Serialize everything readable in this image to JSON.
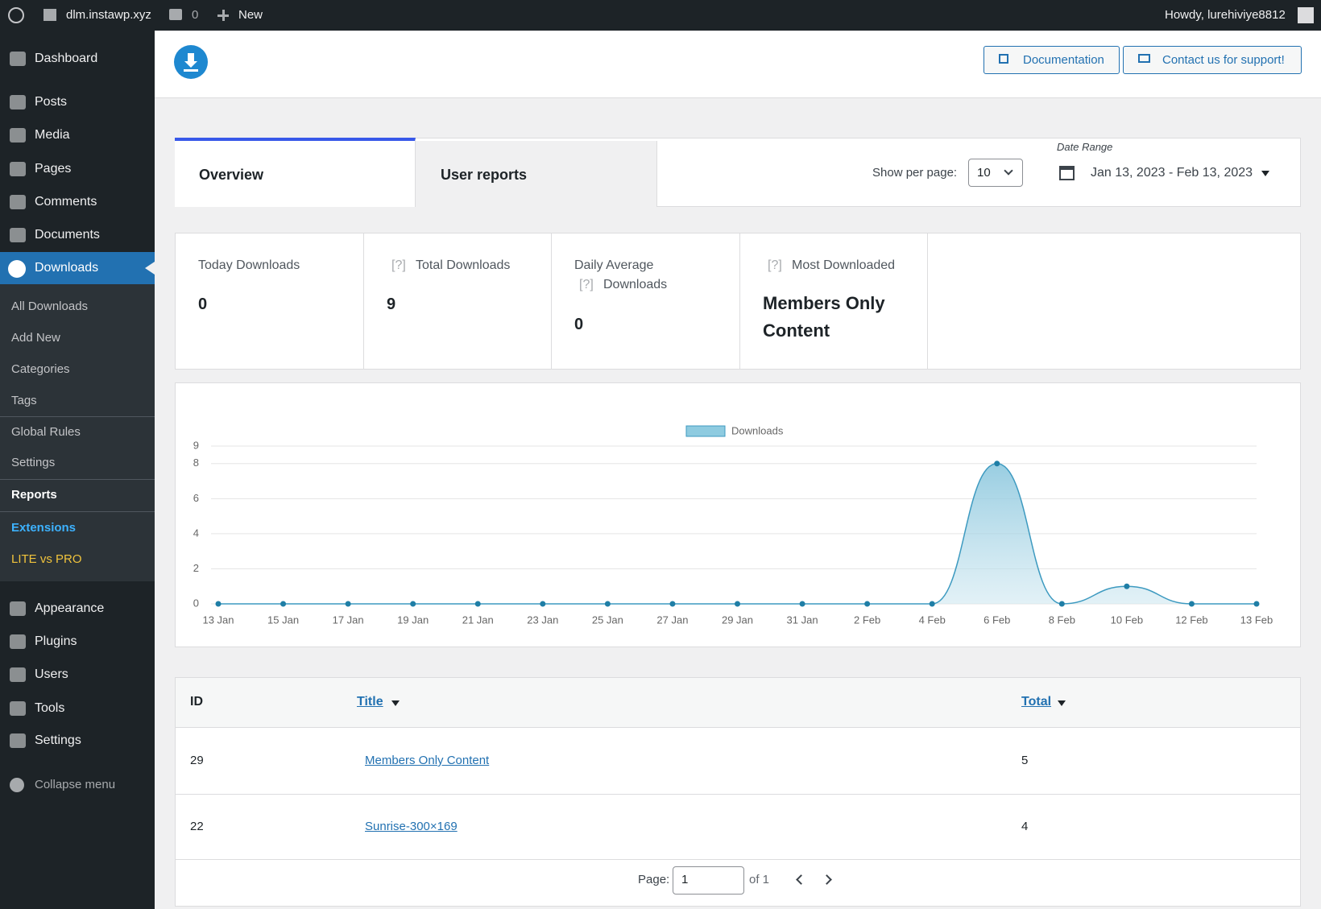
{
  "admin_bar": {
    "site": "dlm.instawp.xyz",
    "comments": "0",
    "new": "New",
    "greeting": "Howdy, lurehiviye8812"
  },
  "sidebar": {
    "dashboard": "Dashboard",
    "menu": [
      "Posts",
      "Media",
      "Pages",
      "Comments",
      "Documents"
    ],
    "active": "Downloads",
    "submenu": [
      "All Downloads",
      "Add New",
      "Categories",
      "Tags"
    ],
    "submenu2": [
      "Global Rules",
      "Settings"
    ],
    "current": "Reports",
    "extensions": "Extensions",
    "lite_vs_pro": "LITE vs PRO",
    "menu_bottom": [
      "Appearance",
      "Plugins",
      "Users",
      "Tools",
      "Settings"
    ],
    "collapse": "Collapse menu"
  },
  "header": {
    "buttons": [
      "Documentation",
      "Contact us for support!"
    ]
  },
  "toolbar": {
    "tabs": [
      "Overview",
      "User reports"
    ],
    "per_page_label": "Show per page:",
    "per_page": "10",
    "date_range_label": "Date Range",
    "date_range": "Jan 13, 2023 - Feb 13, 2023"
  },
  "stats": [
    {
      "label": "Today Downloads",
      "value": 0
    },
    {
      "help": "[?]",
      "label": "Total Downloads",
      "value": 9
    },
    {
      "label": "Daily Average",
      "help": "[?]",
      "label2": "Downloads",
      "value": 0
    },
    {
      "help": "[?]",
      "label": "Most Downloaded",
      "value": "Members Only Content"
    }
  ],
  "chart_data": {
    "type": "area",
    "categories": [
      "13 Jan",
      "15 Jan",
      "17 Jan",
      "19 Jan",
      "21 Jan",
      "23 Jan",
      "25 Jan",
      "27 Jan",
      "29 Jan",
      "31 Jan",
      "2 Feb",
      "4 Feb",
      "6 Feb",
      "8 Feb",
      "10 Feb",
      "12 Feb",
      "13 Feb"
    ],
    "series": [
      {
        "name": "Downloads",
        "color": "#3d9ac0",
        "values": [
          0,
          0,
          0,
          0,
          0,
          0,
          0,
          0,
          0,
          0,
          0,
          0,
          8,
          0,
          1,
          0,
          0
        ]
      }
    ],
    "ylim": [
      0,
      9
    ],
    "yticks": [
      0,
      2,
      4,
      6,
      8,
      9
    ],
    "grid": true,
    "legend": "top"
  },
  "table": {
    "headers": [
      "ID",
      "Title",
      "Total"
    ],
    "rows": [
      [
        29,
        "Members Only Content",
        5
      ],
      [
        22,
        "Sunrise-300×169",
        4
      ]
    ]
  },
  "pagination": {
    "label": "Page:",
    "page": 1,
    "of": "of 1"
  }
}
